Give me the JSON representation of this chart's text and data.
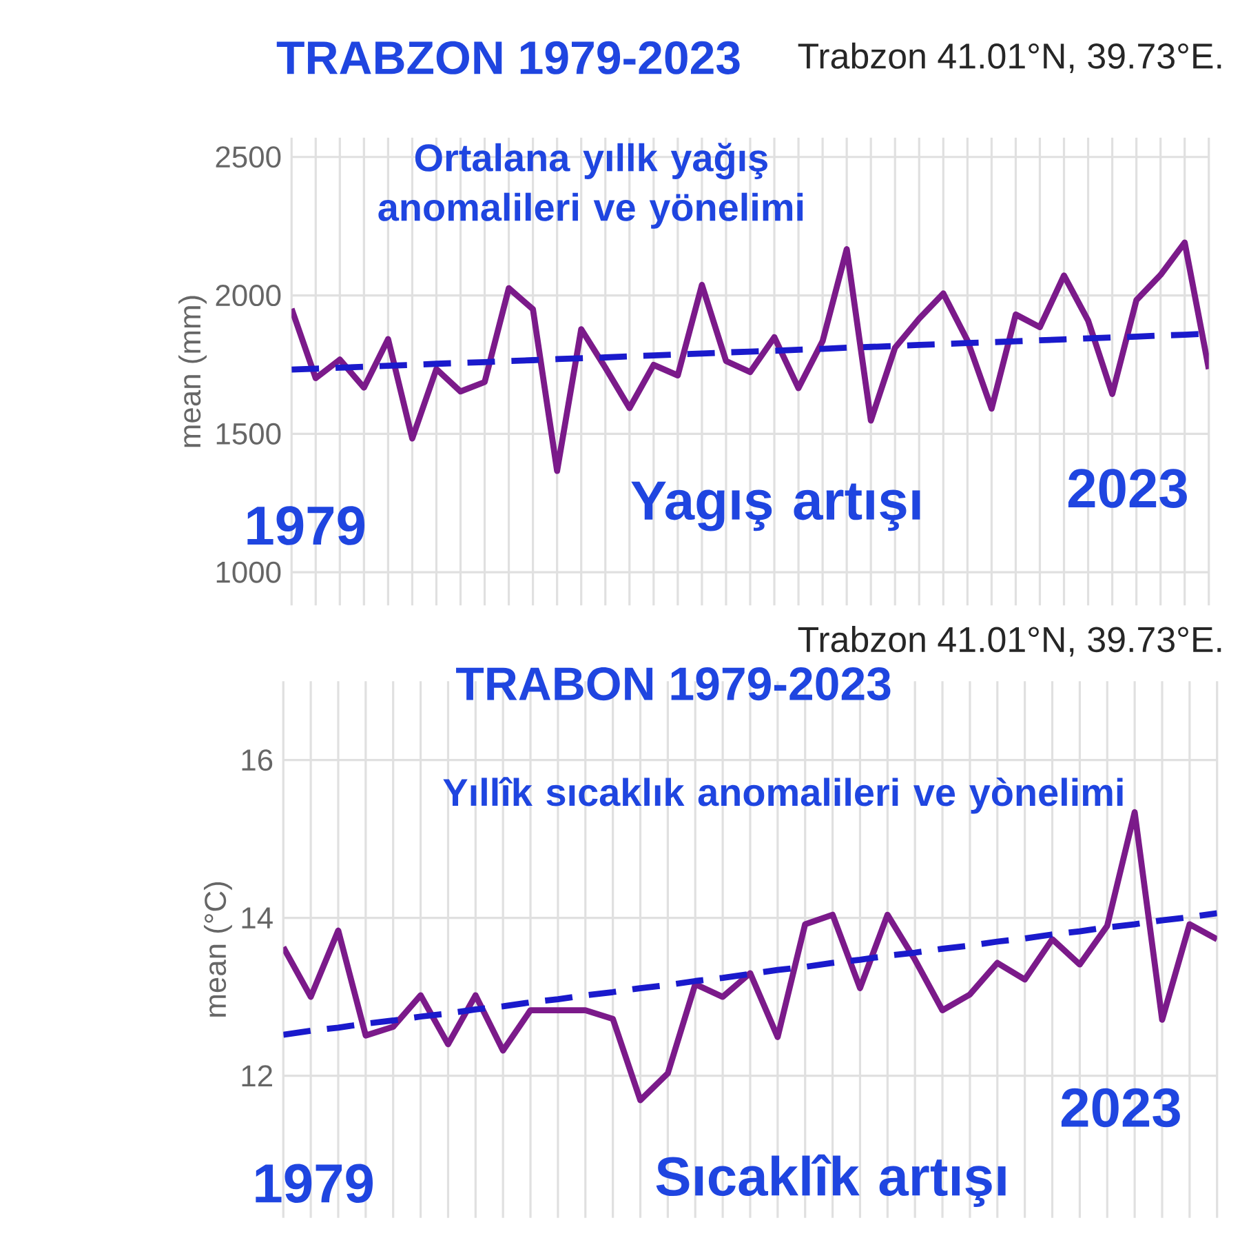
{
  "chart_data": [
    {
      "type": "line",
      "title": "TRABZON 1979-2023",
      "subtitle": "Trabzon 41.01°N, 39.73°E.",
      "ylabel": "mean (mm)",
      "categories": [
        null,
        null,
        null,
        null,
        null,
        null,
        null,
        null,
        null,
        null,
        null,
        null,
        null,
        null,
        null,
        null,
        null,
        null,
        null,
        null,
        null,
        null,
        null,
        null,
        null,
        null,
        null,
        null,
        null,
        null,
        null,
        null,
        null,
        null,
        null,
        null,
        null,
        null,
        null
      ],
      "series": [
        {
          "color": "#7b1a8a",
          "values": [
            1952,
            1701,
            1768,
            1667,
            1842,
            1483,
            1734,
            1653,
            1687,
            2026,
            1950,
            1366,
            1878,
            1739,
            1593,
            1749,
            1711,
            2038,
            1763,
            1723,
            1849,
            1665,
            1835,
            2167,
            1548,
            1811,
            1916,
            2007,
            1837,
            1591,
            1931,
            1885,
            2072,
            1909,
            1644,
            1983,
            2074,
            2191,
            1734
          ],
          "line_style": "solid"
        },
        {
          "type": "line",
          "color": "#1a1acc",
          "values": [
            1732,
            1735,
            1739,
            1742,
            1746,
            1749,
            1753,
            1756,
            1759,
            1763,
            1766,
            1770,
            1773,
            1776,
            1780,
            1783,
            1787,
            1790,
            1794,
            1797,
            1800,
            1804,
            1807,
            1811,
            1814,
            1817,
            1821,
            1824,
            1828,
            1831,
            1834,
            1838,
            1841,
            1845,
            1848,
            1851,
            1855,
            1858,
            1862
          ],
          "line_style": "dashed"
        }
      ],
      "ylim": [
        880,
        2570
      ],
      "yticks": [
        1000,
        1500,
        2000,
        2500
      ],
      "grid": true,
      "tick_labels": "y",
      "marker": "none",
      "annotations": [
        "Ortalana yıllk yağış anomalileri ve yönelimi",
        "Yagış artışı",
        "1979",
        "2023"
      ]
    },
    {
      "type": "line",
      "title": "TRABON 1979-2023",
      "subtitle": "Trabzon 41.01°N, 39.73°E.",
      "ylabel": "mean (°C)",
      "categories": [
        null,
        null,
        null,
        null,
        null,
        null,
        null,
        null,
        null,
        null,
        null,
        null,
        null,
        null,
        null,
        null,
        null,
        null,
        null,
        null,
        null,
        null,
        null,
        null,
        null,
        null,
        null,
        null,
        null,
        null,
        null,
        null,
        null,
        null,
        null
      ],
      "series": [
        {
          "color": "#7b1a8a",
          "values": [
            13.63,
            13.0,
            13.84,
            12.51,
            12.62,
            13.02,
            12.4,
            13.02,
            12.32,
            12.83,
            12.83,
            12.83,
            12.72,
            11.69,
            12.03,
            13.16,
            13.0,
            13.3,
            12.49,
            13.92,
            14.04,
            13.11,
            14.04,
            13.47,
            12.83,
            13.03,
            13.43,
            13.22,
            13.73,
            13.41,
            13.9,
            15.34,
            12.71,
            13.92,
            13.73
          ],
          "line_style": "solid"
        },
        {
          "type": "line",
          "color": "#1a1acc",
          "values": [
            12.52,
            12.57,
            12.61,
            12.66,
            12.7,
            12.75,
            12.79,
            12.84,
            12.88,
            12.93,
            12.97,
            13.02,
            13.06,
            13.11,
            13.15,
            13.2,
            13.24,
            13.29,
            13.34,
            13.38,
            13.43,
            13.47,
            13.52,
            13.56,
            13.61,
            13.65,
            13.7,
            13.74,
            13.79,
            13.83,
            13.88,
            13.92,
            13.97,
            14.01,
            14.06
          ],
          "line_style": "dashed"
        }
      ],
      "ylim": [
        10.2,
        17.0
      ],
      "yticks": [
        12,
        14,
        16
      ],
      "grid": true,
      "tick_labels": "y",
      "marker": "none",
      "annotations": [
        "Yıllîk sıcaklık anomalileri ve yònelimi",
        "Sıcaklîk artışı",
        "1979",
        "2023"
      ]
    }
  ]
}
